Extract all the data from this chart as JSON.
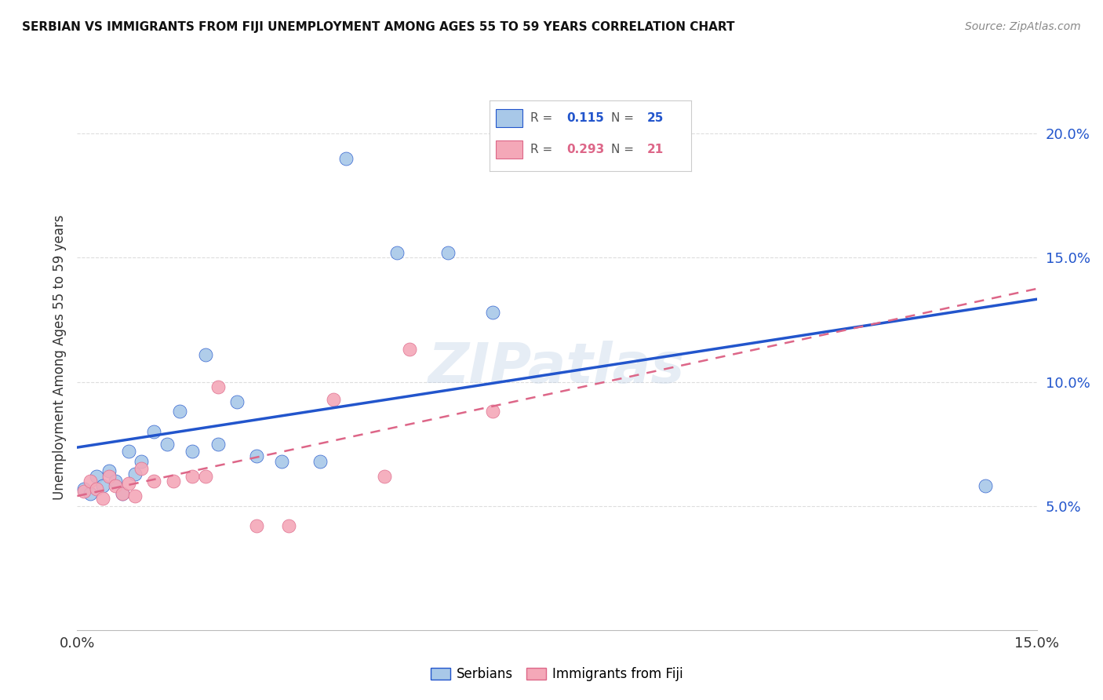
{
  "title": "SERBIAN VS IMMIGRANTS FROM FIJI UNEMPLOYMENT AMONG AGES 55 TO 59 YEARS CORRELATION CHART",
  "source": "Source: ZipAtlas.com",
  "ylabel": "Unemployment Among Ages 55 to 59 years",
  "xlim": [
    0.0,
    0.15
  ],
  "ylim": [
    0.0,
    0.22
  ],
  "yticks": [
    0.05,
    0.1,
    0.15,
    0.2
  ],
  "ytick_labels": [
    "5.0%",
    "10.0%",
    "15.0%",
    "20.0%"
  ],
  "serbians_x": [
    0.001,
    0.002,
    0.003,
    0.004,
    0.005,
    0.006,
    0.007,
    0.008,
    0.009,
    0.01,
    0.012,
    0.014,
    0.016,
    0.018,
    0.02,
    0.022,
    0.025,
    0.028,
    0.032,
    0.038,
    0.042,
    0.05,
    0.058,
    0.065,
    0.142
  ],
  "serbians_y": [
    0.057,
    0.055,
    0.062,
    0.058,
    0.064,
    0.06,
    0.055,
    0.072,
    0.063,
    0.068,
    0.08,
    0.075,
    0.088,
    0.072,
    0.111,
    0.075,
    0.092,
    0.07,
    0.068,
    0.068,
    0.19,
    0.152,
    0.152,
    0.128,
    0.058
  ],
  "fiji_x": [
    0.001,
    0.002,
    0.003,
    0.004,
    0.005,
    0.006,
    0.007,
    0.008,
    0.009,
    0.01,
    0.012,
    0.015,
    0.018,
    0.02,
    0.022,
    0.028,
    0.033,
    0.04,
    0.048,
    0.052,
    0.065
  ],
  "fiji_y": [
    0.056,
    0.06,
    0.057,
    0.053,
    0.062,
    0.058,
    0.055,
    0.059,
    0.054,
    0.065,
    0.06,
    0.06,
    0.062,
    0.062,
    0.098,
    0.042,
    0.042,
    0.093,
    0.062,
    0.113,
    0.088
  ],
  "serbian_color": "#a8c8e8",
  "fiji_color": "#f4a8b8",
  "serbian_line_color": "#2255cc",
  "fiji_line_color": "#dd6688",
  "R_serbian": 0.115,
  "N_serbian": 25,
  "R_fiji": 0.293,
  "N_fiji": 21,
  "background_color": "#ffffff",
  "grid_color": "#dddddd",
  "watermark": "ZIPatlas"
}
